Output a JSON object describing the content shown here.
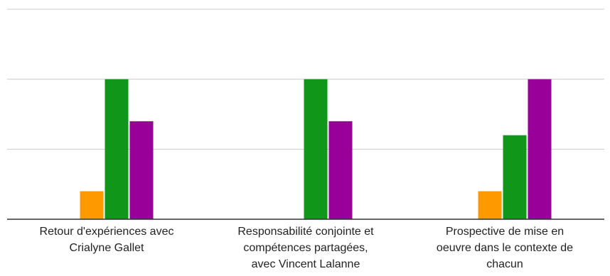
{
  "chart_data": {
    "type": "bar",
    "categories": [
      "Retour d'expériences avec Crialyne Gallet",
      "Responsabilité conjointe et compétences partagées, avec Vincent Lalanne",
      "Prospective de mise en oeuvre dans le contexte de chacun"
    ],
    "category_lines": [
      [
        "Retour d'expériences avec",
        "Crialyne Gallet"
      ],
      [
        "Responsabilité conjointe et",
        "compétences partagées,",
        "avec Vincent Lalanne"
      ],
      [
        "Prospective de mise en",
        "oeuvre dans le contexte de",
        "chacun"
      ]
    ],
    "series": [
      {
        "color": "#ff9900",
        "values": [
          0.4,
          0,
          0.4
        ]
      },
      {
        "color": "#109618",
        "values": [
          2,
          2,
          1.2
        ]
      },
      {
        "color": "#990099",
        "values": [
          1.4,
          1.4,
          2
        ]
      }
    ],
    "ylim": [
      0,
      3
    ],
    "grid": true,
    "colors": {
      "gridline": "#cccccc",
      "axis": "#333333",
      "text": "#222222"
    }
  }
}
